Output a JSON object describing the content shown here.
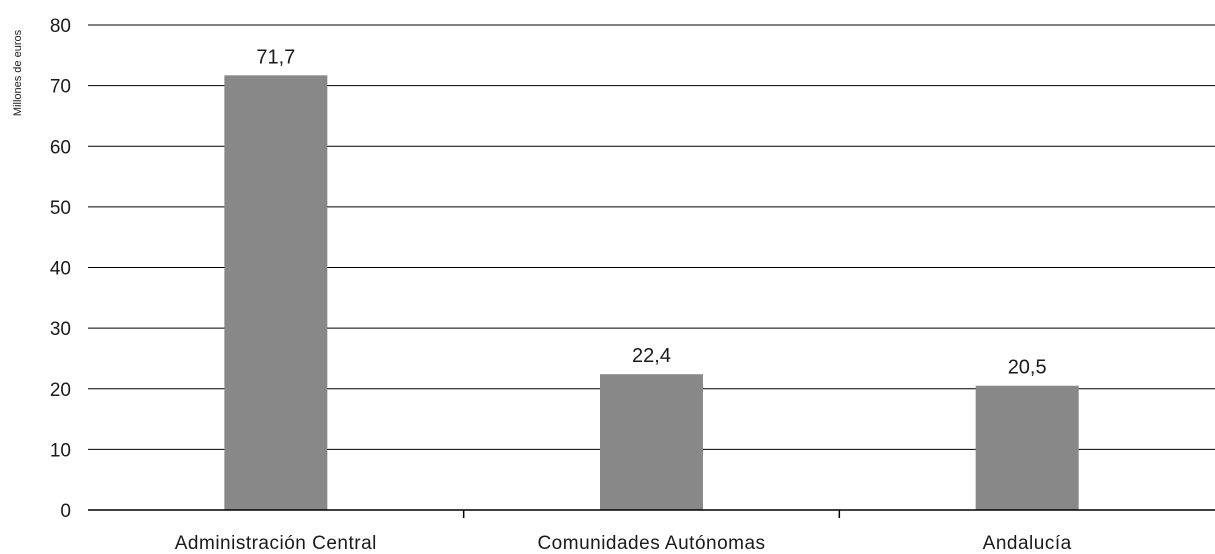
{
  "chart_data": {
    "type": "bar",
    "title": "",
    "xlabel": "",
    "ylabel": "Millones de euros",
    "categories": [
      "Administración Central",
      "Comunidades Autónomas",
      "Andalucía"
    ],
    "values": [
      71.7,
      22.4,
      20.5
    ],
    "data_labels": [
      "71,7",
      "22,4",
      "20,5"
    ],
    "ylim": [
      0,
      80
    ],
    "yticks": [
      0,
      10,
      20,
      30,
      40,
      50,
      60,
      70,
      80
    ],
    "grid": true,
    "legend": "none",
    "colors": {
      "bar": "#888888",
      "gridline": "#000000",
      "text": "#1a1a1a"
    }
  }
}
